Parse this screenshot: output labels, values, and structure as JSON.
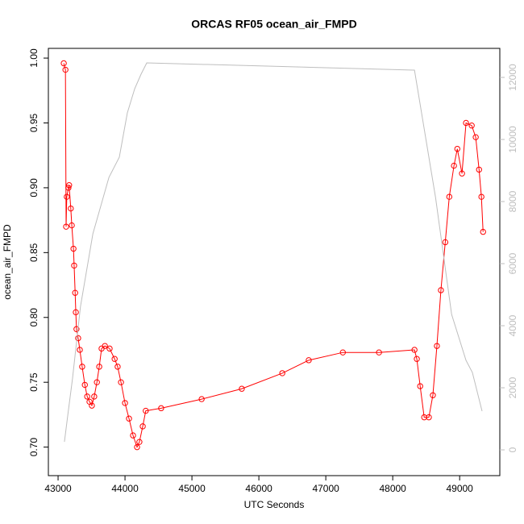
{
  "chart_data": {
    "type": "line",
    "title": "ORCAS RF05 ocean_air_FMPD",
    "xlabel": "UTC Seconds",
    "ylabel": "ocean_air_FMPD",
    "xlim": [
      42855,
      49600
    ],
    "xticks": [
      43000,
      44000,
      45000,
      46000,
      47000,
      48000,
      49000
    ],
    "ylim": [
      0.678,
      1.0075
    ],
    "yticks": [
      {
        "value": 0.7,
        "label": "0.70"
      },
      0.75,
      {
        "value": 0.8,
        "label": "0.80"
      },
      0.85,
      {
        "value": 0.9,
        "label": "0.90"
      },
      0.95,
      {
        "value": 1.0,
        "label": "1.00"
      }
    ],
    "y2lim": [
      -830,
      12935
    ],
    "y2ticks": [
      0,
      2000,
      4000,
      6000,
      8000,
      10000,
      12000
    ],
    "series": [
      {
        "color": "#ff0000",
        "markers": true,
        "x": [
          43085,
          43110,
          43120,
          43130,
          43155,
          43165,
          43190,
          43205,
          43230,
          43240,
          43255,
          43265,
          43275,
          43300,
          43325,
          43360,
          43400,
          43435,
          43470,
          43505,
          43540,
          43580,
          43615,
          43650,
          43700,
          43770,
          43845,
          43890,
          43940,
          44000,
          44060,
          44120,
          44180,
          44215,
          44265,
          44310,
          44540,
          45145,
          45745,
          46350,
          46745,
          47255,
          47795,
          48325,
          48360,
          48410,
          48470,
          48540,
          48600,
          48660,
          48720,
          48785,
          48845,
          48915,
          48965,
          49035,
          49095,
          49180,
          49240,
          49290,
          49325,
          49350
        ],
        "values": [
          0.996,
          0.991,
          0.87,
          0.893,
          0.9,
          0.902,
          0.884,
          0.871,
          0.853,
          0.84,
          0.819,
          0.804,
          0.791,
          0.784,
          0.775,
          0.762,
          0.748,
          0.739,
          0.735,
          0.732,
          0.739,
          0.75,
          0.762,
          0.776,
          0.778,
          0.776,
          0.768,
          0.762,
          0.75,
          0.734,
          0.722,
          0.709,
          0.7,
          0.704,
          0.716,
          0.728,
          0.73,
          0.737,
          0.745,
          0.757,
          0.767,
          0.773,
          0.773,
          0.775,
          0.768,
          0.747,
          0.723,
          0.723,
          0.74,
          0.778,
          0.821,
          0.858,
          0.893,
          0.917,
          0.93,
          0.911,
          0.95,
          0.948,
          0.939,
          0.914,
          0.893,
          0.866
        ]
      },
      {
        "color": "#bebebe",
        "axis": "y2",
        "markers": false,
        "x": [
          43095,
          43145,
          43215,
          43335,
          43520,
          43760,
          43915,
          44035,
          44145,
          44240,
          44325,
          48325,
          48640,
          48880,
          49095,
          49190,
          49335
        ],
        "values": [
          260,
          1117,
          2286,
          4623,
          6961,
          8779,
          9429,
          10857,
          11636,
          12104,
          12468,
          12234,
          8130,
          4364,
          2883,
          2494,
          1247
        ]
      }
    ]
  }
}
